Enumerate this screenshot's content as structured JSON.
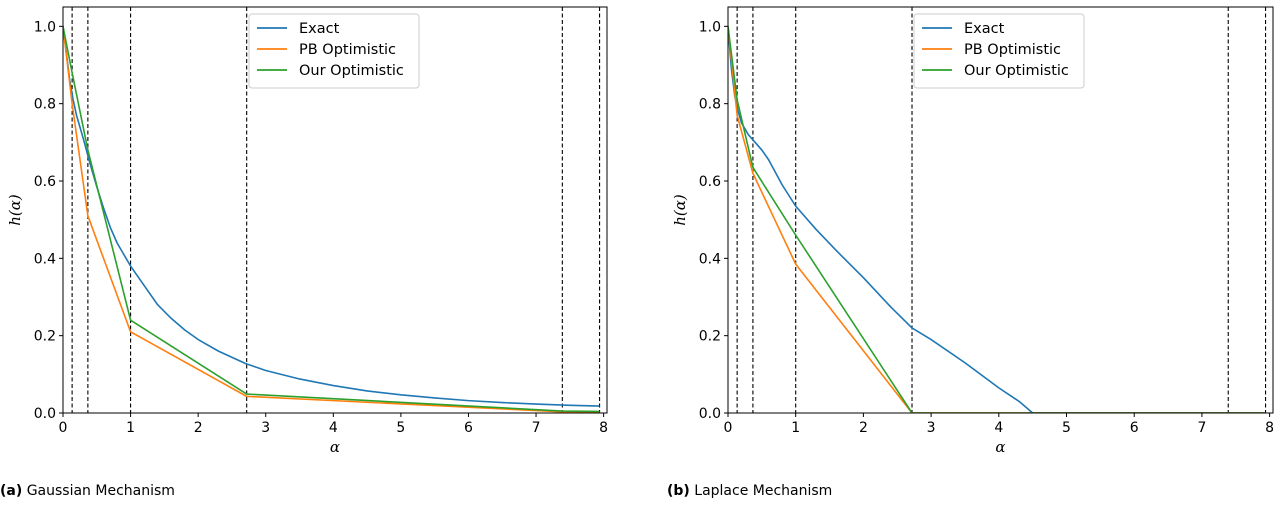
{
  "chart_data": [
    {
      "type": "line",
      "caption_label": "(a)",
      "caption_text": "Gaussian Mechanism",
      "xlabel": "α",
      "ylabel": "h(α)",
      "xlim": [
        0,
        8.05
      ],
      "ylim": [
        0,
        1.05
      ],
      "xticks": [
        0,
        1,
        2,
        3,
        4,
        5,
        6,
        7,
        8
      ],
      "yticks": [
        0.0,
        0.2,
        0.4,
        0.6,
        0.8,
        1.0
      ],
      "ytick_labels": [
        "0.0",
        "0.2",
        "0.4",
        "0.6",
        "0.8",
        "1.0"
      ],
      "legend_position": "upper center",
      "vlines": [
        0.135,
        0.368,
        1.0,
        2.718,
        7.389,
        7.94
      ],
      "series": [
        {
          "name": "Exact",
          "color": "#1f77b4",
          "x": [
            0,
            0.05,
            0.1,
            0.15,
            0.2,
            0.3,
            0.4,
            0.5,
            0.6,
            0.7,
            0.8,
            0.9,
            1.0,
            1.2,
            1.4,
            1.6,
            1.8,
            2.0,
            2.3,
            2.7,
            3.0,
            3.5,
            4.0,
            4.5,
            5.0,
            5.5,
            6.0,
            6.5,
            7.0,
            7.5,
            7.94
          ],
          "y": [
            1.0,
            0.93,
            0.86,
            0.81,
            0.77,
            0.71,
            0.645,
            0.585,
            0.53,
            0.48,
            0.44,
            0.41,
            0.38,
            0.33,
            0.28,
            0.245,
            0.215,
            0.19,
            0.16,
            0.128,
            0.11,
            0.088,
            0.071,
            0.057,
            0.047,
            0.039,
            0.032,
            0.027,
            0.023,
            0.02,
            0.018
          ]
        },
        {
          "name": "PB Optimistic",
          "color": "#ff7f0e",
          "x": [
            0,
            0.135,
            0.368,
            1.0,
            2.718,
            7.389,
            7.94
          ],
          "y": [
            1.0,
            0.8,
            0.51,
            0.21,
            0.043,
            0.003,
            0.002
          ]
        },
        {
          "name": "Our Optimistic",
          "color": "#2ca02c",
          "x": [
            0,
            0.135,
            0.368,
            1.0,
            2.718,
            7.389,
            7.94
          ],
          "y": [
            1.0,
            0.88,
            0.68,
            0.24,
            0.049,
            0.005,
            0.004
          ]
        }
      ]
    },
    {
      "type": "line",
      "caption_label": "(b)",
      "caption_text": "Laplace Mechanism",
      "xlabel": "α",
      "ylabel": "h(α)",
      "xlim": [
        0,
        8.05
      ],
      "ylim": [
        0,
        1.05
      ],
      "xticks": [
        0,
        1,
        2,
        3,
        4,
        5,
        6,
        7,
        8
      ],
      "yticks": [
        0.0,
        0.2,
        0.4,
        0.6,
        0.8,
        1.0
      ],
      "ytick_labels": [
        "0.0",
        "0.2",
        "0.4",
        "0.6",
        "0.8",
        "1.0"
      ],
      "legend_position": "upper center",
      "vlines": [
        0.135,
        0.368,
        1.0,
        2.718,
        7.389,
        7.94
      ],
      "series": [
        {
          "name": "Exact",
          "color": "#1f77b4",
          "x": [
            0,
            0.05,
            0.1,
            0.15,
            0.2,
            0.3,
            0.4,
            0.5,
            0.6,
            0.8,
            1.0,
            1.3,
            1.6,
            2.0,
            2.4,
            2.718,
            3.0,
            3.5,
            4.0,
            4.3,
            4.5,
            5.0,
            6.0,
            7.0,
            7.94
          ],
          "y": [
            1.0,
            0.89,
            0.82,
            0.78,
            0.75,
            0.72,
            0.7,
            0.68,
            0.655,
            0.59,
            0.535,
            0.475,
            0.42,
            0.35,
            0.275,
            0.22,
            0.19,
            0.13,
            0.065,
            0.03,
            0.0,
            0.0,
            0.0,
            0.0,
            0.0
          ]
        },
        {
          "name": "PB Optimistic",
          "color": "#ff7f0e",
          "x": [
            0,
            0.135,
            0.368,
            1.0,
            2.718,
            7.389,
            7.94
          ],
          "y": [
            1.0,
            0.77,
            0.62,
            0.385,
            0.0,
            0.0,
            0.0
          ]
        },
        {
          "name": "Our Optimistic",
          "color": "#2ca02c",
          "x": [
            0,
            0.135,
            0.368,
            1.0,
            2.718,
            7.389,
            7.94
          ],
          "y": [
            1.0,
            0.81,
            0.635,
            0.46,
            0.0,
            0.0,
            0.0
          ]
        }
      ]
    }
  ]
}
